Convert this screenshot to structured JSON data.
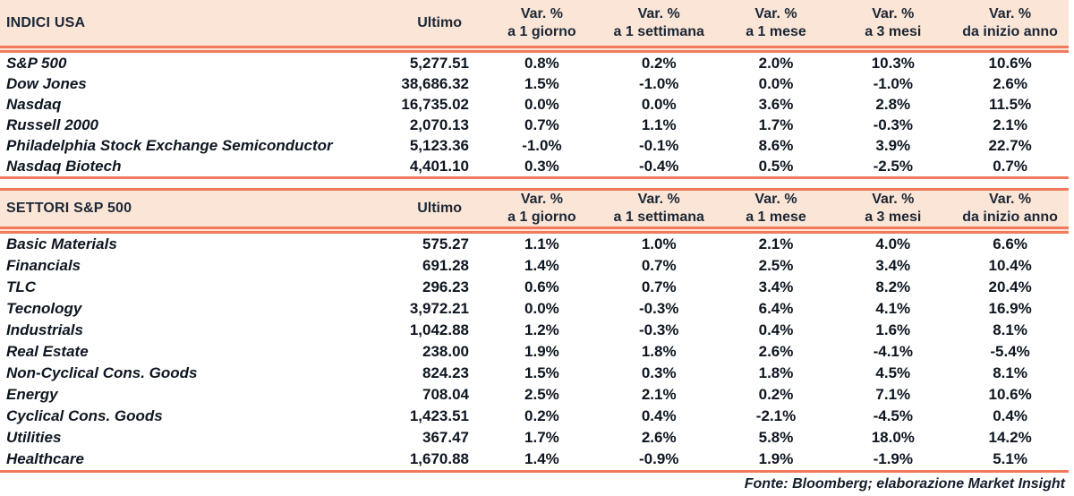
{
  "colors": {
    "header_bg": "#FBE5D6",
    "rule": "#F07A5B",
    "header_text": "#1B2736",
    "body_text": "#0E1621"
  },
  "columns": {
    "ultimo_label": "Ultimo",
    "var_headers": [
      {
        "line1": "Var. %",
        "line2": "a 1 giorno"
      },
      {
        "line1": "Var. %",
        "line2": "a 1 settimana"
      },
      {
        "line1": "Var. %",
        "line2": "a 1 mese"
      },
      {
        "line1": "Var. %",
        "line2": "a 3 mesi"
      },
      {
        "line1": "Var. %",
        "line2": "da inizio anno"
      }
    ]
  },
  "sections": [
    {
      "title": "INDICI USA",
      "rows": [
        {
          "name": "S&P 500",
          "ultimo": "5,277.51",
          "vars": [
            "0.8%",
            "0.2%",
            "2.0%",
            "10.3%",
            "10.6%"
          ]
        },
        {
          "name": "Dow Jones",
          "ultimo": "38,686.32",
          "vars": [
            "1.5%",
            "-1.0%",
            "0.0%",
            "-1.0%",
            "2.6%"
          ]
        },
        {
          "name": "Nasdaq",
          "ultimo": "16,735.02",
          "vars": [
            "0.0%",
            "0.0%",
            "3.6%",
            "2.8%",
            "11.5%"
          ]
        },
        {
          "name": "Russell 2000",
          "ultimo": "2,070.13",
          "vars": [
            "0.7%",
            "1.1%",
            "1.7%",
            "-0.3%",
            "2.1%"
          ]
        },
        {
          "name": "Philadelphia Stock Exchange Semiconductor",
          "ultimo": "5,123.36",
          "vars": [
            "-1.0%",
            "-0.1%",
            "8.6%",
            "3.9%",
            "22.7%"
          ]
        },
        {
          "name": "Nasdaq Biotech",
          "ultimo": "4,401.10",
          "vars": [
            "0.3%",
            "-0.4%",
            "0.5%",
            "-2.5%",
            "0.7%"
          ]
        }
      ]
    },
    {
      "title": "SETTORI S&P 500",
      "rows": [
        {
          "name": "Basic Materials",
          "ultimo": "575.27",
          "vars": [
            "1.1%",
            "1.0%",
            "2.1%",
            "4.0%",
            "6.6%"
          ]
        },
        {
          "name": "Financials",
          "ultimo": "691.28",
          "vars": [
            "1.4%",
            "0.7%",
            "2.5%",
            "3.4%",
            "10.4%"
          ]
        },
        {
          "name": "TLC",
          "ultimo": "296.23",
          "vars": [
            "0.6%",
            "0.7%",
            "3.4%",
            "8.2%",
            "20.4%"
          ]
        },
        {
          "name": "Tecnology",
          "ultimo": "3,972.21",
          "vars": [
            "0.0%",
            "-0.3%",
            "6.4%",
            "4.1%",
            "16.9%"
          ]
        },
        {
          "name": "Industrials",
          "ultimo": "1,042.88",
          "vars": [
            "1.2%",
            "-0.3%",
            "0.4%",
            "1.6%",
            "8.1%"
          ]
        },
        {
          "name": "Real Estate",
          "ultimo": "238.00",
          "vars": [
            "1.9%",
            "1.8%",
            "2.6%",
            "-4.1%",
            "-5.4%"
          ]
        },
        {
          "name": "Non-Cyclical Cons. Goods",
          "ultimo": "824.23",
          "vars": [
            "1.5%",
            "0.3%",
            "1.8%",
            "4.5%",
            "8.1%"
          ]
        },
        {
          "name": "Energy",
          "ultimo": "708.04",
          "vars": [
            "2.5%",
            "2.1%",
            "0.2%",
            "7.1%",
            "10.6%"
          ]
        },
        {
          "name": "Cyclical Cons. Goods",
          "ultimo": "1,423.51",
          "vars": [
            "0.2%",
            "0.4%",
            "-2.1%",
            "-4.5%",
            "0.4%"
          ]
        },
        {
          "name": "Utilities",
          "ultimo": "367.47",
          "vars": [
            "1.7%",
            "2.6%",
            "5.8%",
            "18.0%",
            "14.2%"
          ]
        },
        {
          "name": "Healthcare",
          "ultimo": "1,670.88",
          "vars": [
            "1.4%",
            "-0.9%",
            "1.9%",
            "-1.9%",
            "5.1%"
          ]
        }
      ]
    }
  ],
  "footer": {
    "source_note": "Fonte: Bloomberg; elaborazione Market Insight"
  }
}
